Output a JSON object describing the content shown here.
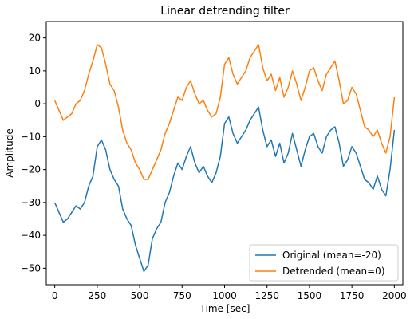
{
  "chart_data": {
    "type": "line",
    "title": "Linear detrending filter",
    "xlabel": "Time [sec]",
    "ylabel": "Amplitude",
    "xlim": [
      -50,
      2050
    ],
    "ylim": [
      -55,
      25
    ],
    "x_ticks": [
      0,
      250,
      500,
      750,
      1000,
      1250,
      1500,
      1750,
      2000
    ],
    "x_tick_labels": [
      "0",
      "250",
      "500",
      "750",
      "1000",
      "1250",
      "1500",
      "1750",
      "2000"
    ],
    "y_ticks": [
      -50,
      -40,
      -30,
      -20,
      -10,
      0,
      10,
      20
    ],
    "y_tick_labels": [
      "−50",
      "−40",
      "−30",
      "−20",
      "−10",
      "0",
      "10",
      "20"
    ],
    "grid": false,
    "legend_position": "lower right",
    "series": [
      {
        "name": "Original (mean=-20)",
        "color": "#1f77b4",
        "x": [
          0,
          25,
          50,
          75,
          100,
          125,
          150,
          175,
          200,
          225,
          250,
          275,
          300,
          325,
          350,
          375,
          400,
          425,
          450,
          475,
          500,
          525,
          550,
          575,
          600,
          625,
          650,
          675,
          700,
          725,
          750,
          775,
          800,
          825,
          850,
          875,
          900,
          925,
          950,
          975,
          1000,
          1025,
          1050,
          1075,
          1100,
          1125,
          1150,
          1175,
          1200,
          1225,
          1250,
          1275,
          1300,
          1325,
          1350,
          1375,
          1400,
          1425,
          1450,
          1475,
          1500,
          1525,
          1550,
          1575,
          1600,
          1625,
          1650,
          1675,
          1700,
          1725,
          1750,
          1775,
          1800,
          1825,
          1850,
          1875,
          1900,
          1925,
          1950,
          1975,
          2000
        ],
        "y": [
          -30,
          -33,
          -36,
          -35,
          -33,
          -31,
          -32,
          -30,
          -25,
          -22,
          -13,
          -11,
          -14,
          -20,
          -23,
          -25,
          -32,
          -35,
          -37,
          -43,
          -47,
          -51,
          -49,
          -41,
          -38,
          -36,
          -30,
          -27,
          -22,
          -18,
          -20,
          -16,
          -13,
          -18,
          -21,
          -19,
          -22,
          -24,
          -21,
          -16,
          -6,
          -4,
          -9,
          -12,
          -10,
          -8,
          -5,
          -3,
          -1,
          -8,
          -13,
          -11,
          -16,
          -12,
          -18,
          -15,
          -9,
          -14,
          -19,
          -14,
          -10,
          -9,
          -13,
          -15,
          -10,
          -8,
          -7,
          -12,
          -19,
          -17,
          -13,
          -15,
          -19,
          -23,
          -24,
          -26,
          -22,
          -26,
          -28,
          -20,
          -8
        ]
      },
      {
        "name": "Detrended (mean=0)",
        "color": "#ff7f0e",
        "x": [
          0,
          25,
          50,
          75,
          100,
          125,
          150,
          175,
          200,
          225,
          250,
          275,
          300,
          325,
          350,
          375,
          400,
          425,
          450,
          475,
          500,
          525,
          550,
          575,
          600,
          625,
          650,
          675,
          700,
          725,
          750,
          775,
          800,
          825,
          850,
          875,
          900,
          925,
          950,
          975,
          1000,
          1025,
          1050,
          1075,
          1100,
          1125,
          1150,
          1175,
          1200,
          1225,
          1250,
          1275,
          1300,
          1325,
          1350,
          1375,
          1400,
          1425,
          1450,
          1475,
          1500,
          1525,
          1550,
          1575,
          1600,
          1625,
          1650,
          1675,
          1700,
          1725,
          1750,
          1775,
          1800,
          1825,
          1850,
          1875,
          1900,
          1925,
          1950,
          1975,
          2000
        ],
        "y": [
          1,
          -2,
          -5,
          -4,
          -3,
          0,
          1,
          4,
          9,
          13,
          18,
          17,
          12,
          6,
          4,
          -1,
          -8,
          -12,
          -14,
          -18,
          -20,
          -23,
          -23,
          -20,
          -17,
          -14,
          -9,
          -6,
          -2,
          2,
          1,
          5,
          7,
          3,
          0,
          1,
          -2,
          -4,
          -3,
          2,
          12,
          14,
          9,
          6,
          8,
          10,
          14,
          16,
          18,
          11,
          7,
          9,
          4,
          8,
          2,
          5,
          10,
          6,
          1,
          5,
          10,
          11,
          7,
          4,
          9,
          11,
          13,
          7,
          0,
          1,
          5,
          3,
          -2,
          -7,
          -8,
          -10,
          -8,
          -12,
          -15,
          -10,
          2
        ]
      }
    ]
  }
}
